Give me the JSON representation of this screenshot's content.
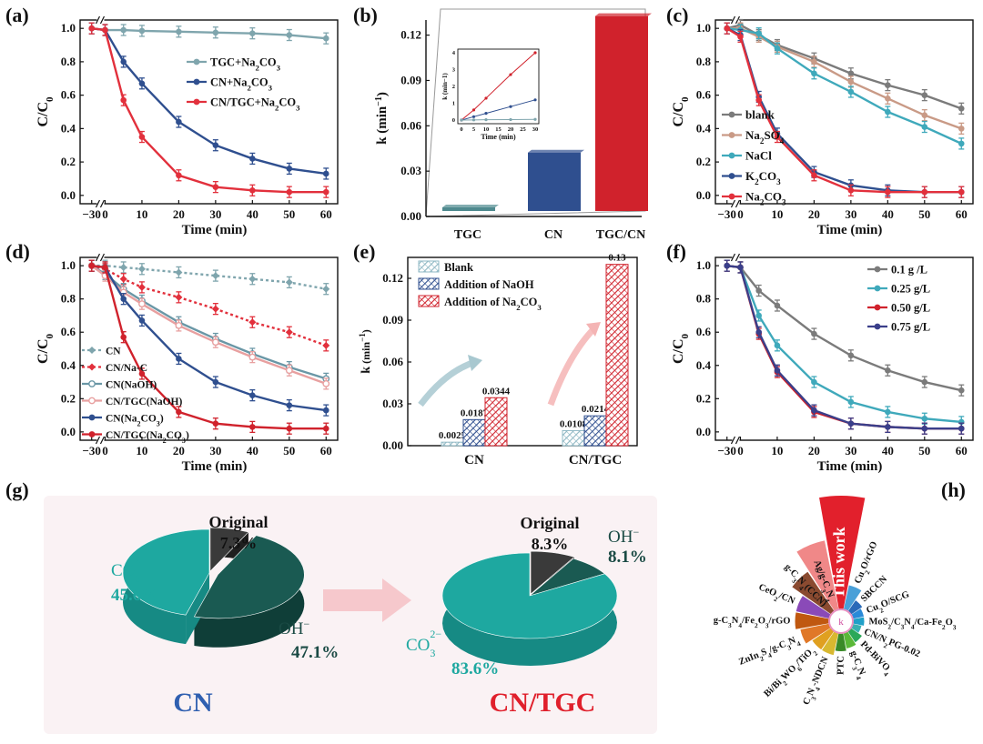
{
  "chart_data": [
    {
      "panel": "(a)",
      "type": "line",
      "xlabel": "Time (min)",
      "ylabel": "C/C0",
      "xticks": [
        "−30",
        "0",
        "10",
        "20",
        "30",
        "40",
        "50",
        "60"
      ],
      "yticks": [
        "0.0",
        "0.2",
        "0.4",
        "0.6",
        "0.8",
        "1.0"
      ],
      "ylim": [
        -0.05,
        1.05
      ],
      "x": [
        -30,
        0,
        5,
        10,
        20,
        30,
        40,
        50,
        60
      ],
      "series": [
        {
          "name": "TGC+Na2CO3",
          "color": "#7fa5ad",
          "values": [
            1.0,
            0.99,
            0.99,
            0.985,
            0.98,
            0.975,
            0.97,
            0.96,
            0.94
          ]
        },
        {
          "name": "CN+Na2CO3",
          "color": "#2f4f8f",
          "values": [
            1.0,
            0.99,
            0.8,
            0.67,
            0.44,
            0.3,
            0.22,
            0.16,
            0.13
          ]
        },
        {
          "name": "CN/TGC+Na2CO3",
          "color": "#e2303c",
          "values": [
            1.0,
            0.99,
            0.57,
            0.35,
            0.12,
            0.05,
            0.03,
            0.02,
            0.02
          ]
        }
      ]
    },
    {
      "panel": "(b)",
      "type": "bar",
      "ylabel": "k (min−1)",
      "categories": [
        "TGC",
        "CN",
        "TGC/CN"
      ],
      "values": [
        0.001,
        0.0387,
        0.129
      ],
      "colors": [
        "#4f8a8f",
        "#2f4f8f",
        "#d0222c"
      ],
      "yticks": [
        "0.00",
        "0.03",
        "0.06",
        "0.09",
        "0.12"
      ],
      "ylim": [
        0,
        0.13
      ],
      "inset": {
        "xlabel": "Time (min)",
        "ylabel": "k (min−1)",
        "xticks": [
          "0",
          "5",
          "10",
          "15",
          "20",
          "25",
          "30"
        ],
        "yticks": [
          "0",
          "1",
          "2",
          "3",
          "4"
        ],
        "x": [
          0,
          5,
          10,
          20,
          30
        ],
        "series": [
          {
            "color": "#d0222c",
            "values": [
              0,
              0.6,
              1.3,
              2.7,
              4.0
            ]
          },
          {
            "color": "#2f4f8f",
            "values": [
              0,
              0.2,
              0.4,
              0.8,
              1.2
            ]
          },
          {
            "color": "#7fa5ad",
            "values": [
              0,
              0.01,
              0.02,
              0.03,
              0.04
            ]
          }
        ]
      }
    },
    {
      "panel": "(c)",
      "type": "line",
      "xlabel": "Time (min)",
      "ylabel": "C/C0",
      "xticks": [
        "−30",
        "0",
        "10",
        "20",
        "30",
        "40",
        "50",
        "60"
      ],
      "yticks": [
        "0.0",
        "0.2",
        "0.4",
        "0.6",
        "0.8",
        "1.0"
      ],
      "x": [
        -30,
        0,
        5,
        10,
        20,
        30,
        40,
        50,
        60
      ],
      "series": [
        {
          "name": "blank",
          "color": "#7b7b7b",
          "values": [
            1.0,
            1.02,
            0.96,
            0.9,
            0.82,
            0.73,
            0.66,
            0.6,
            0.52
          ]
        },
        {
          "name": "Na2SO4",
          "color": "#c99a86",
          "values": [
            1.0,
            1.0,
            0.95,
            0.89,
            0.8,
            0.68,
            0.58,
            0.48,
            0.4
          ]
        },
        {
          "name": "NaCl",
          "color": "#3fa9bb",
          "values": [
            1.0,
            0.99,
            0.97,
            0.88,
            0.73,
            0.62,
            0.5,
            0.41,
            0.31
          ]
        },
        {
          "name": "K2CO3",
          "color": "#2f4f8f",
          "values": [
            1.0,
            0.96,
            0.59,
            0.37,
            0.14,
            0.06,
            0.03,
            0.02,
            0.02
          ]
        },
        {
          "name": "Na2CO3",
          "color": "#e2303c",
          "values": [
            1.0,
            0.95,
            0.57,
            0.35,
            0.12,
            0.03,
            0.02,
            0.02,
            0.02
          ]
        }
      ]
    },
    {
      "panel": "(d)",
      "type": "line",
      "xlabel": "Time (min)",
      "ylabel": "C/C0",
      "xticks": [
        "−30",
        "0",
        "10",
        "20",
        "30",
        "40",
        "50",
        "60"
      ],
      "yticks": [
        "0.0",
        "0.2",
        "0.4",
        "0.6",
        "0.8",
        "1.0"
      ],
      "x": [
        -30,
        0,
        5,
        10,
        20,
        30,
        40,
        50,
        60
      ],
      "series": [
        {
          "name": "CN",
          "color": "#7fa5ad",
          "dashed": true,
          "values": [
            1.0,
            1.0,
            0.99,
            0.98,
            0.96,
            0.94,
            0.92,
            0.9,
            0.86
          ]
        },
        {
          "name": "CN/Na-C",
          "color": "#e2303c",
          "dashed": true,
          "values": [
            1.0,
            0.98,
            0.92,
            0.87,
            0.81,
            0.74,
            0.66,
            0.6,
            0.52
          ]
        },
        {
          "name": "CN(NaOH)",
          "color": "#6a97a6",
          "values": [
            1.0,
            0.95,
            0.86,
            0.79,
            0.66,
            0.56,
            0.47,
            0.39,
            0.32
          ]
        },
        {
          "name": "CN/TGC(NaOH)",
          "color": "#e8a0a0",
          "values": [
            1.0,
            0.94,
            0.84,
            0.77,
            0.64,
            0.54,
            0.45,
            0.37,
            0.29
          ]
        },
        {
          "name": "CN(Na2CO3)",
          "color": "#2f4f8f",
          "values": [
            1.0,
            0.99,
            0.8,
            0.67,
            0.44,
            0.3,
            0.22,
            0.16,
            0.13
          ]
        },
        {
          "name": "CN/TGC(Na2CO3)",
          "color": "#d0222c",
          "values": [
            1.0,
            0.99,
            0.57,
            0.35,
            0.12,
            0.05,
            0.03,
            0.02,
            0.02
          ]
        }
      ]
    },
    {
      "panel": "(e)",
      "type": "bar",
      "ylabel": "k (min−1)",
      "categories": [
        "CN",
        "CN/TGC"
      ],
      "yticks": [
        "0.00",
        "0.03",
        "0.06",
        "0.09",
        "0.12"
      ],
      "ylim": [
        0,
        0.135
      ],
      "series": [
        {
          "name": "Blank",
          "color": "#8fb8c4",
          "values": [
            0.0025,
            0.0108
          ]
        },
        {
          "name": "Addition of NaOH",
          "color": "#2f4f8f",
          "values": [
            0.0187,
            0.0214
          ]
        },
        {
          "name": "Addition of Na2CO3",
          "color": "#d0222c",
          "values": [
            0.0344,
            0.13
          ]
        }
      ],
      "labels": [
        [
          "0.0025",
          "0.0187",
          "0.0344"
        ],
        [
          "0.0108",
          "0.0214",
          "0.13"
        ]
      ]
    },
    {
      "panel": "(f)",
      "type": "line",
      "xlabel": "Time (min)",
      "ylabel": "C/C0",
      "xticks": [
        "−30",
        "0",
        "10",
        "20",
        "30",
        "40",
        "50",
        "60"
      ],
      "yticks": [
        "0.0",
        "0.2",
        "0.4",
        "0.6",
        "0.8",
        "1.0"
      ],
      "x": [
        -30,
        0,
        5,
        10,
        20,
        30,
        40,
        50,
        60
      ],
      "series": [
        {
          "name": "0.1 g /L",
          "color": "#7b7b7b",
          "values": [
            1.0,
            0.99,
            0.85,
            0.76,
            0.59,
            0.46,
            0.37,
            0.3,
            0.25
          ]
        },
        {
          "name": "0.25 g/L",
          "color": "#3fa9bb",
          "values": [
            1.0,
            0.99,
            0.7,
            0.52,
            0.3,
            0.18,
            0.12,
            0.08,
            0.06
          ]
        },
        {
          "name": "0.50 g/L",
          "color": "#d0222c",
          "values": [
            1.0,
            0.99,
            0.59,
            0.36,
            0.12,
            0.05,
            0.03,
            0.02,
            0.02
          ]
        },
        {
          "name": "0.75 g/L",
          "color": "#3a3f8a",
          "values": [
            1.0,
            0.99,
            0.6,
            0.37,
            0.13,
            0.05,
            0.03,
            0.02,
            0.02
          ]
        }
      ]
    },
    {
      "panel": "(g)",
      "type": "pie",
      "pies": [
        {
          "title": "CN",
          "title_color": "#2f5fb0",
          "slices": [
            {
              "name": "Original",
              "value": 7.3
            },
            {
              "name": "OH-",
              "value": 47.1
            },
            {
              "name": "CO32-",
              "value": 45.6
            }
          ],
          "labels": {
            "orig_name": "Original",
            "orig_val": "7.3%",
            "oh": "OH",
            "oh_val": "47.1%",
            "co3": "CO",
            "co3_val": "45.6%"
          }
        },
        {
          "title": "CN/TGC",
          "title_color": "#e0202c",
          "slices": [
            {
              "name": "Original",
              "value": 8.3
            },
            {
              "name": "OH-",
              "value": 8.1
            },
            {
              "name": "CO32-",
              "value": 83.6
            }
          ],
          "labels": {
            "orig_name": "Original",
            "orig_val": "8.3%",
            "oh": "OH",
            "oh_val": "8.1%",
            "co3": "CO",
            "co3_val": "83.6%"
          }
        }
      ]
    },
    {
      "panel": "(h)",
      "type": "rose",
      "center": "k",
      "items": [
        {
          "name": "This work",
          "color": "#e2202c",
          "len": 1.0
        },
        {
          "name": "Cu2O/rGO",
          "color": "#4aa0d8",
          "len": 0.22
        },
        {
          "name": "SBCCN",
          "color": "#2a6ab8",
          "len": 0.12
        },
        {
          "name": "Cu2O/SCG",
          "color": "#2a8ad8",
          "len": 0.1
        },
        {
          "name": "MoS2/C3N4/Ca-Fe2O3",
          "color": "#20a0c8",
          "len": 0.1
        },
        {
          "name": "CN/N2PG-0.02",
          "color": "#38b0b0",
          "len": 0.08
        },
        {
          "name": "Pd-BiVO4",
          "color": "#2aa858",
          "len": 0.12
        },
        {
          "name": "g-C3N4",
          "color": "#5ab838",
          "len": 0.14
        },
        {
          "name": "PTC",
          "color": "#3a8a28",
          "len": 0.16
        },
        {
          "name": "C3N4-NDCN",
          "color": "#d8b830",
          "len": 0.2
        },
        {
          "name": "Bi/Bi2WO6/TiO2",
          "color": "#e0a020",
          "len": 0.2
        },
        {
          "name": "ZnIn2S4/g-C3N4",
          "color": "#e07828",
          "len": 0.26
        },
        {
          "name": "g-C3N4/Fe2O3/rGO",
          "color": "#c05810",
          "len": 0.3
        },
        {
          "name": "CeO2/CN",
          "color": "#8a4ab8",
          "len": 0.3
        },
        {
          "name": "g-C3N4(CCN)",
          "color": "#8a4a30",
          "len": 0.42
        },
        {
          "name": "Ag/g-C3N4",
          "color": "#f08888",
          "len": 0.62
        }
      ]
    }
  ],
  "panel_labels": [
    "(a)",
    "(b)",
    "(c)",
    "(d)",
    "(e)",
    "(f)",
    "(g)",
    "(h)"
  ]
}
